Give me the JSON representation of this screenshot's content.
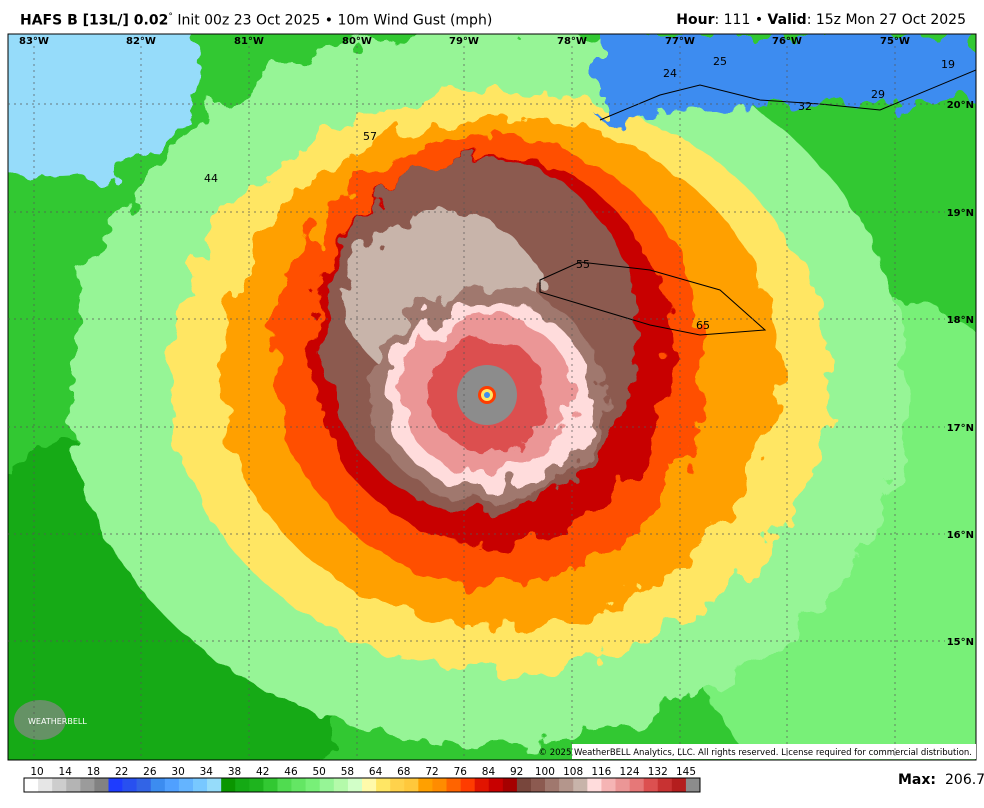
{
  "header": {
    "model": "HAFS B [13L/] 0.02",
    "degree": "°",
    "init": "Init 00z 23 Oct 2025 • 10m Wind Gust (mph)",
    "hour_label": "Hour",
    "hour_value": ": 111 •",
    "valid_label": "Valid",
    "valid_value": ": 15z Mon 27 Oct 2025"
  },
  "map": {
    "longitudes": [
      "83°W",
      "82°W",
      "81°W",
      "80°W",
      "79°W",
      "78°W",
      "77°W",
      "76°W",
      "75°W"
    ],
    "latitudes": [
      "20°N",
      "19°N",
      "18°N",
      "17°N",
      "16°N",
      "15°N"
    ],
    "point_labels": [
      "24",
      "25",
      "32",
      "29",
      "19",
      "55",
      "65",
      "57",
      "44"
    ],
    "copyright": "© 2025 WeatherBELL Analytics, LLC. All rights reserved. License required for commercial distribution.",
    "logo": "WEATHERBELL"
  },
  "colorbar": {
    "ticks": [
      "10",
      "14",
      "18",
      "22",
      "26",
      "30",
      "34",
      "38",
      "42",
      "46",
      "50",
      "58",
      "64",
      "68",
      "72",
      "76",
      "84",
      "92",
      "100",
      "108",
      "116",
      "124",
      "132",
      "145"
    ],
    "colors": [
      "#ffffff",
      "#e6e6e6",
      "#cdcdcd",
      "#b4b4b4",
      "#9b9b9b",
      "#828282",
      "#1e3cff",
      "#2850f0",
      "#3264e6",
      "#3c8cf0",
      "#50a0ff",
      "#64b4ff",
      "#78c8ff",
      "#96dcfa",
      "#0a9600",
      "#14aa14",
      "#1eb41e",
      "#32c832",
      "#50dc50",
      "#64e664",
      "#78f078",
      "#96f596",
      "#b4faaa",
      "#d2ffc8",
      "#fffaaa",
      "#ffe664",
      "#ffd24b",
      "#ffc83c",
      "#ffa000",
      "#ff8c00",
      "#ff6400",
      "#ff3c00",
      "#e11400",
      "#c80000",
      "#a50000",
      "#78463c",
      "#8c5a50",
      "#a0786e",
      "#b4968c",
      "#c8b4aa",
      "#ffdcdc",
      "#f5b4b4",
      "#eb9696",
      "#e67878",
      "#dc5050",
      "#c83232",
      "#b41e1e",
      "#8c8c8c"
    ]
  },
  "max": {
    "label": "Max:",
    "value": "206.7"
  }
}
